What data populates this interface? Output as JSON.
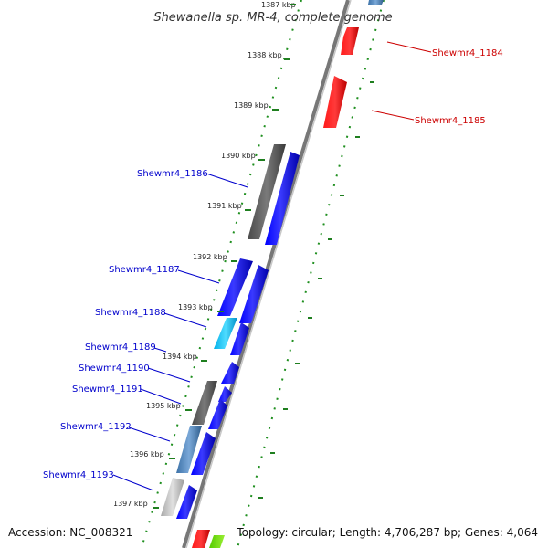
{
  "title": "Shewanella sp. MR-4, complete genome",
  "footer": {
    "accession": "Accession: NC_008321",
    "summary": "Topology: circular; Length: 4,706,287 bp; Genes: 4,064"
  },
  "ticks": [
    "1387 kbp",
    "1388 kbp",
    "1389 kbp",
    "1390 kbp",
    "1391 kbp",
    "1392 kbp",
    "1393 kbp",
    "1394 kbp",
    "1395 kbp",
    "1396 kbp",
    "1397 kbp"
  ],
  "genes_reverse": [
    {
      "label": "Shewmr4_1184",
      "color": "#dd0000"
    },
    {
      "label": "Shewmr4_1185",
      "color": "#dd0000"
    }
  ],
  "genes_forward": [
    {
      "label": "Shewmr4_1186",
      "color": "#0000cc"
    },
    {
      "label": "Shewmr4_1187",
      "color": "#0000cc"
    },
    {
      "label": "Shewmr4_1188",
      "color": "#0000cc"
    },
    {
      "label": "Shewmr4_1189",
      "color": "#0000cc"
    },
    {
      "label": "Shewmr4_1190",
      "color": "#0000cc"
    },
    {
      "label": "Shewmr4_1191",
      "color": "#0000cc"
    },
    {
      "label": "Shewmr4_1192",
      "color": "#0000cc"
    },
    {
      "label": "Shewmr4_1193",
      "color": "#0000cc"
    }
  ],
  "colors": {
    "forward_gene": "#0000ff",
    "reverse_gene": "#ee0000",
    "backbone": "#888888",
    "gc_dots": "#228b22",
    "cog_dark": "#606060",
    "cog_cyan": "#1ec8f0",
    "cog_steel": "#5a8fbf",
    "cog_light": "#b8b8b8"
  }
}
